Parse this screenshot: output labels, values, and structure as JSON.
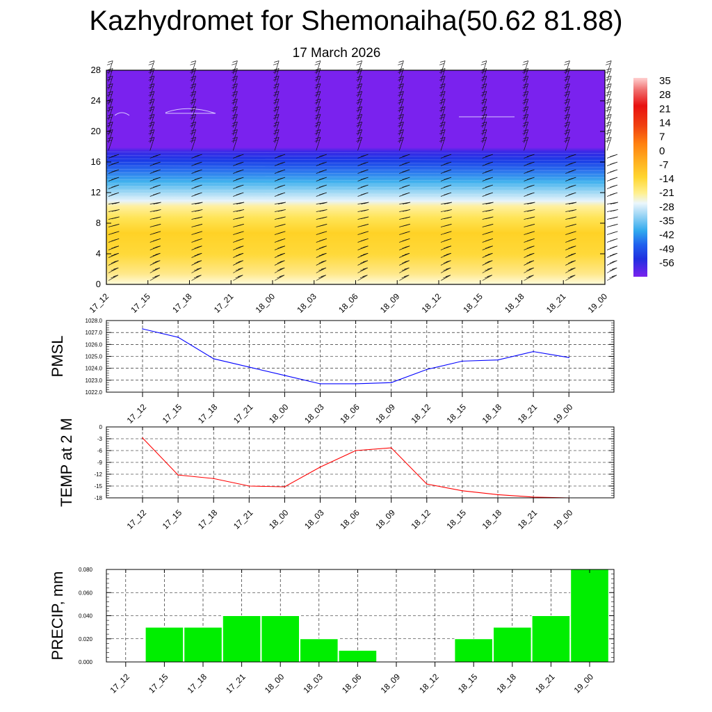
{
  "header": {
    "title": "Kazhydromet for Shemonaiha(50.62 81.88)",
    "date": "17 March 2026"
  },
  "colors": {
    "pmsl_line": "#0000ff",
    "temp_line": "#ff0000",
    "precip_bar": "#00ee00",
    "contour_top": "#7a22ee",
    "contour_warm": "#ffd426"
  },
  "chart_data": [
    {
      "type": "heatmap",
      "title": "Kazhydromet for Shemonaiha(50.62 81.88)",
      "subtitle": "17 March 2026",
      "categories": [
        "17_12",
        "17_15",
        "17_18",
        "17_21",
        "18_00",
        "18_03",
        "18_06",
        "18_09",
        "18_12",
        "18_15",
        "18_18",
        "18_21",
        "19_00"
      ],
      "y_ticks": [
        0,
        4,
        8,
        12,
        16,
        20,
        24,
        28
      ],
      "ylim": [
        0,
        28
      ],
      "colorbar_labels": [
        35,
        28,
        21,
        14,
        7,
        0,
        -7,
        -14,
        -21,
        -28,
        -35,
        -42,
        -49,
        -56
      ],
      "layers": [
        {
          "from": 0,
          "to": 10.9,
          "value_range": [
            -14,
            -7
          ],
          "label": "warm layer (yellow/orange)"
        },
        {
          "from": 10.9,
          "to": 17.8,
          "value_range": [
            -56,
            -14
          ],
          "label": "transition (light blue to dark blue)"
        },
        {
          "from": 17.8,
          "to": 28,
          "value_range": [
            -60,
            -56
          ],
          "label": "upper layer (purple)"
        }
      ],
      "wind_barbs": true
    },
    {
      "type": "line",
      "ylabel": "PMSL",
      "categories": [
        "17_12",
        "17_15",
        "17_18",
        "17_21",
        "18_00",
        "18_03",
        "18_06",
        "18_09",
        "18_12",
        "18_15",
        "18_18",
        "18_21",
        "19_00"
      ],
      "values": [
        1027.3,
        1026.6,
        1024.8,
        1024.1,
        1023.4,
        1022.7,
        1022.7,
        1022.8,
        1023.9,
        1024.6,
        1024.7,
        1025.4,
        1024.9
      ],
      "y_ticks": [
        "1022.0",
        "1023.0",
        "1024.0",
        "1025.0",
        "1026.0",
        "1027.0",
        "1028.0"
      ],
      "ylim": [
        1022,
        1028
      ],
      "grid": true
    },
    {
      "type": "line",
      "ylabel": "TEMP at 2 M",
      "categories": [
        "17_12",
        "17_15",
        "17_18",
        "17_21",
        "18_00",
        "18_03",
        "18_06",
        "18_09",
        "18_12",
        "18_15",
        "18_18",
        "18_21",
        "19_00"
      ],
      "values": [
        -2.8,
        -12.2,
        -13.1,
        -15.0,
        -15.2,
        -10.2,
        -6.0,
        -5.3,
        -14.5,
        -16.2,
        -17.2,
        -17.8,
        -18.0
      ],
      "y_ticks": [
        "-18",
        "-15",
        "-12",
        "-9",
        "-6",
        "-3",
        "0"
      ],
      "ylim": [
        -18,
        0
      ],
      "grid": true
    },
    {
      "type": "bar",
      "ylabel": "PRECIP, mm",
      "categories": [
        "17_12",
        "17_15",
        "17_18",
        "17_21",
        "18_00",
        "18_03",
        "18_06",
        "18_09",
        "18_12",
        "18_15",
        "18_18",
        "18_21",
        "19_00"
      ],
      "values": [
        0,
        0.03,
        0.03,
        0.04,
        0.04,
        0.02,
        0.01,
        0,
        0,
        0.02,
        0.03,
        0.04,
        0.08
      ],
      "y_ticks": [
        "0.000",
        "0.020",
        "0.040",
        "0.060",
        "0.080"
      ],
      "ylim": [
        0,
        0.08
      ],
      "grid": true
    }
  ]
}
